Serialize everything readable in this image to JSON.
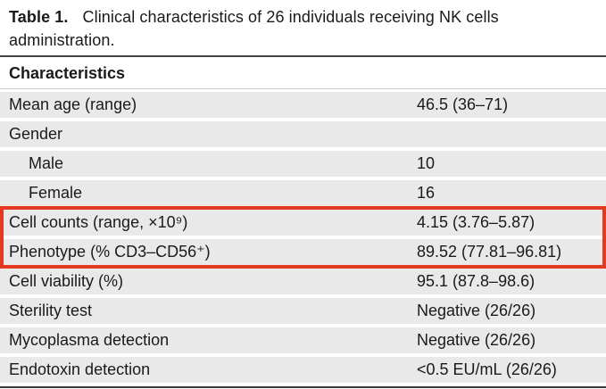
{
  "title": {
    "label": "Table 1.",
    "text": "Clinical characteristics of 26 individuals receiving NK cells administration."
  },
  "table": {
    "header": "Characteristics",
    "rows": [
      {
        "label": "Mean age (range)",
        "value": "46.5 (36–71)"
      },
      {
        "label": "Gender",
        "value": ""
      },
      {
        "label": "Male",
        "value": "10"
      },
      {
        "label": "Female",
        "value": "16"
      },
      {
        "label": "Cell counts (range, ×10⁹)",
        "value": "4.15 (3.76–5.87)"
      },
      {
        "label": "Phenotype (% CD3–CD56⁺)",
        "value": "89.52 (77.81–96.81)"
      },
      {
        "label": "Cell viability (%)",
        "value": "95.1 (87.8–98.6)"
      },
      {
        "label": "Sterility test",
        "value": "Negative (26/26)"
      },
      {
        "label": "Mycoplasma detection",
        "value": "Negative (26/26)"
      },
      {
        "label": "Endotoxin detection",
        "value": "<0.5 EU/mL (26/26)"
      }
    ],
    "highlighted_rows": [
      "Cell counts (range, ×10⁹)",
      "Phenotype (% CD3–CD56⁺)"
    ]
  },
  "colors": {
    "highlight_box": "#e43a22",
    "row_background": "#e9e9e9",
    "rule_dark": "#3a3a3a",
    "text": "#1a1a1a"
  }
}
